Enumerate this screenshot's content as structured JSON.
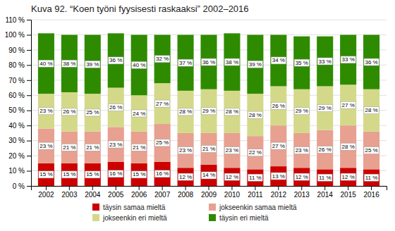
{
  "chart_data": {
    "type": "bar",
    "stacked": true,
    "data_labels": true,
    "grid": true,
    "legend": "bottom",
    "title": "Kuva 92. “Koen työni fyysisesti raskaaksi” 2002–2016",
    "categories": [
      "2002",
      "2003",
      "2004",
      "2005",
      "2006",
      "2007",
      "2008",
      "2009",
      "2010",
      "2011",
      "2012",
      "2013",
      "2014",
      "2015",
      "2016"
    ],
    "series": [
      {
        "name": "täysin samaa mieltä",
        "color": "#cc0000",
        "values": [
          15,
          15,
          15,
          16,
          15,
          16,
          12,
          14,
          12,
          11,
          13,
          12,
          11,
          12,
          11
        ],
        "value_labels": [
          "15 %",
          "15 %",
          "15 %",
          "16 %",
          "15 %",
          "16 %",
          "12 %",
          "14 %",
          "12 %",
          "11 %",
          "13 %",
          "12 %",
          "11 %",
          "12 %",
          "11 %"
        ]
      },
      {
        "name": "jokseenkin samaa mieltä",
        "color": "#e8a090",
        "values": [
          23,
          21,
          21,
          23,
          21,
          25,
          23,
          21,
          23,
          22,
          27,
          23,
          26,
          28,
          25
        ],
        "value_labels": [
          "23 %",
          "21 %",
          "21 %",
          "23 %",
          "21 %",
          "25 %",
          "23 %",
          "21 %",
          "23 %",
          "22 %",
          "27 %",
          "23 %",
          "26 %",
          "28 %",
          "25 %"
        ]
      },
      {
        "name": "jokseenkin eri mieltä",
        "color": "#d4d98a",
        "values": [
          23,
          26,
          25,
          26,
          24,
          27,
          28,
          29,
          28,
          28,
          26,
          29,
          29,
          27,
          28
        ],
        "value_labels": [
          "23 %",
          "26 %",
          "25 %",
          "26 %",
          "24 %",
          "27 %",
          "28 %",
          "29 %",
          "28 %",
          "28 %",
          "26 %",
          "29 %",
          "29 %",
          "27 %",
          "28 %"
        ]
      },
      {
        "name": "täysin eri mieltä",
        "color": "#2e8b00",
        "values": [
          40,
          38,
          39,
          36,
          40,
          32,
          37,
          36,
          38,
          39,
          34,
          35,
          33,
          33,
          36
        ],
        "value_labels": [
          "40 %",
          "38 %",
          "39 %",
          "36 %",
          "40 %",
          "32 %",
          "37 %",
          "36 %",
          "38 %",
          "39 %",
          "34 %",
          "35 %",
          "33 %",
          "33 %",
          "36 %"
        ]
      }
    ],
    "ylim": [
      0,
      110
    ],
    "yticks": [
      {
        "value": 0,
        "label": "0 %"
      },
      {
        "value": 10,
        "label": "10 %"
      },
      {
        "value": 20,
        "label": "20 %"
      },
      {
        "value": 30,
        "label": "30 %"
      },
      {
        "value": 40,
        "label": "40 %"
      },
      {
        "value": 50,
        "label": "50 %"
      },
      {
        "value": 60,
        "label": "60 %"
      },
      {
        "value": 70,
        "label": "70 %"
      },
      {
        "value": 80,
        "label": "80 %"
      },
      {
        "value": 90,
        "label": "90 %"
      },
      {
        "value": 100,
        "label": "100 %"
      },
      {
        "value": 110,
        "label": "110 %"
      }
    ]
  }
}
